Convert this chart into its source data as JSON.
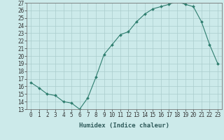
{
  "title": "",
  "xlabel": "Humidex (Indice chaleur)",
  "ylabel": "",
  "x": [
    0,
    1,
    2,
    3,
    4,
    5,
    6,
    7,
    8,
    9,
    10,
    11,
    12,
    13,
    14,
    15,
    16,
    17,
    18,
    19,
    20,
    21,
    22,
    23
  ],
  "y": [
    16.5,
    15.8,
    15.0,
    14.8,
    14.0,
    13.8,
    13.0,
    14.5,
    17.2,
    20.2,
    21.5,
    22.8,
    23.2,
    24.5,
    25.5,
    26.2,
    26.5,
    26.8,
    27.2,
    26.8,
    26.5,
    24.5,
    21.5,
    19.0
  ],
  "line_color": "#2e7d6e",
  "bg_color": "#cceaea",
  "grid_color": "#aacccc",
  "ylim": [
    13,
    27
  ],
  "xlim": [
    -0.5,
    23.5
  ],
  "yticks": [
    13,
    14,
    15,
    16,
    17,
    18,
    19,
    20,
    21,
    22,
    23,
    24,
    25,
    26,
    27
  ],
  "xticks": [
    0,
    1,
    2,
    3,
    4,
    5,
    6,
    7,
    8,
    9,
    10,
    11,
    12,
    13,
    14,
    15,
    16,
    17,
    18,
    19,
    20,
    21,
    22,
    23
  ],
  "tick_fontsize": 5.5,
  "xlabel_fontsize": 6.5
}
